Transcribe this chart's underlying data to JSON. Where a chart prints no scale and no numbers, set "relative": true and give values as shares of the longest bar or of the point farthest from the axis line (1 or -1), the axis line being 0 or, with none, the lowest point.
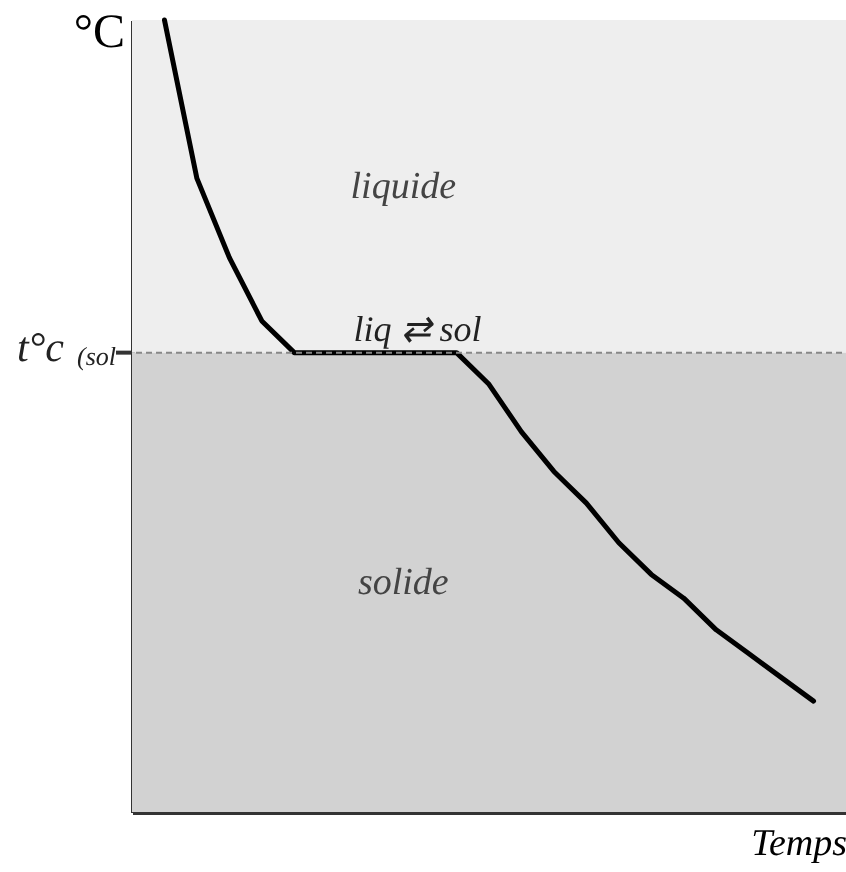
{
  "chart_data": {
    "type": "line",
    "relative": true,
    "xlabel": "Temps",
    "ylabel": "°C",
    "categories": [
      null,
      null,
      null,
      null,
      null,
      null,
      null,
      null,
      null,
      null,
      null,
      null,
      null,
      null,
      null,
      null,
      null,
      null,
      null,
      null,
      null
    ],
    "series": [
      {
        "color": "#000000",
        "values": [
          1.0,
          0.8,
          0.7,
          0.62,
          0.58,
          0.58,
          0.58,
          0.58,
          0.58,
          0.58,
          0.54,
          0.48,
          0.43,
          0.39,
          0.34,
          0.3,
          0.27,
          0.23,
          0.2,
          0.17,
          0.14
        ]
      }
    ],
    "marker": "none",
    "line_style": "solid",
    "bands": [
      {
        "axis": "y",
        "from": 0.58,
        "to": 1,
        "label": "liquide",
        "color": "#eeeeee"
      },
      {
        "axis": "y",
        "from": 0,
        "to": 0.58,
        "label": "solide",
        "color": "#d2d2d2"
      }
    ],
    "ref_lines": [
      {
        "axis": "y",
        "value": 0.58,
        "label": "t°c$_{(sol}$"
      }
    ],
    "annotations": [
      {
        "text": "liq ⇄ sol",
        "y": 0.58
      }
    ]
  }
}
